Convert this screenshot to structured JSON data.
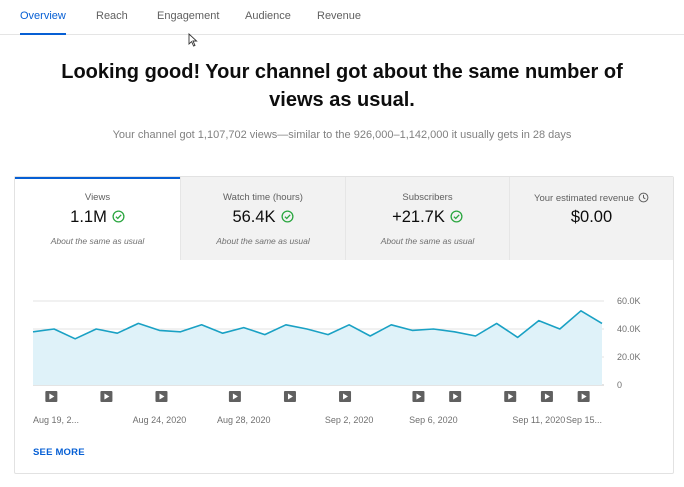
{
  "tabs": [
    {
      "label": "Overview",
      "active": true
    },
    {
      "label": "Reach",
      "active": false
    },
    {
      "label": "Engagement",
      "active": false
    },
    {
      "label": "Audience",
      "active": false
    },
    {
      "label": "Revenue",
      "active": false
    }
  ],
  "headline": "Looking good! Your channel got about the same number of views as usual.",
  "subline": "Your channel got 1,107,702 views—similar to the 926,000–1,142,000 it usually gets in 28 days",
  "metrics": [
    {
      "label": "Views",
      "value": "1.1M",
      "sub": "About the same as usual",
      "icon": "check-circle-icon"
    },
    {
      "label": "Watch time (hours)",
      "value": "56.4K",
      "sub": "About the same as usual",
      "icon": "check-circle-icon"
    },
    {
      "label": "Subscribers",
      "value": "+21.7K",
      "sub": "About the same as usual",
      "icon": "check-circle-icon"
    },
    {
      "label": "Your estimated revenue",
      "value": "$0.00",
      "icon": "clock-icon"
    }
  ],
  "see_more": "SEE MORE",
  "colors": {
    "accent": "#065fd4",
    "line": "#1aa1c4",
    "fill": "#dff2f9",
    "check": "#2ba640"
  },
  "chart_data": {
    "type": "area",
    "x_index": [
      1,
      2,
      3,
      4,
      5,
      6,
      7,
      8,
      9,
      10,
      11,
      12,
      13,
      14,
      15,
      16,
      17,
      18,
      19,
      20,
      21,
      22,
      23,
      24,
      25,
      26,
      27,
      28
    ],
    "values": [
      38000,
      40000,
      33000,
      40000,
      37000,
      44000,
      39000,
      38000,
      43000,
      37000,
      41000,
      36000,
      43000,
      40000,
      36000,
      43000,
      35000,
      43000,
      39000,
      40000,
      38000,
      35000,
      44000,
      34000,
      46000,
      40000,
      53000,
      44000
    ],
    "x_tick_labels": [
      "Aug 19, 2...",
      "Aug 24, 2020",
      "Aug 28, 2020",
      "Sep 2, 2020",
      "Sep 6, 2020",
      "Sep 11, 2020",
      "Sep 15..."
    ],
    "x_tick_index": [
      2,
      7,
      11,
      16,
      20,
      25,
      28
    ],
    "y_ticks": [
      0,
      20000,
      40000,
      60000
    ],
    "y_tick_labels": [
      "0",
      "20.0K",
      "40.0K",
      "60.0K"
    ],
    "ylim": [
      0,
      60000
    ],
    "video_markers_index": [
      2,
      5,
      8,
      12,
      15,
      18,
      22,
      24,
      27,
      29,
      31
    ],
    "grid": true
  }
}
